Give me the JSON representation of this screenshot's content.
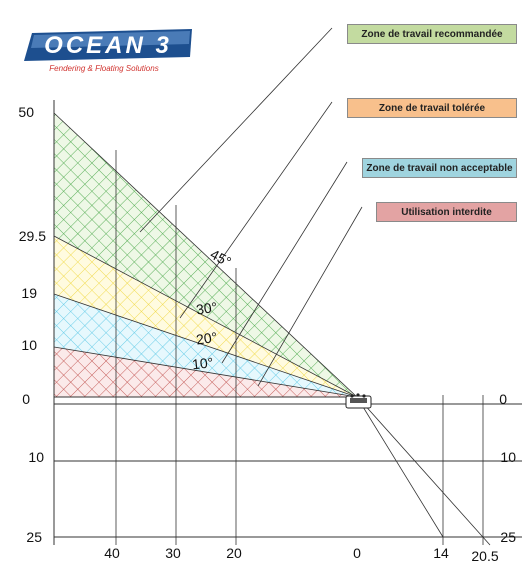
{
  "logo": {
    "name": "OCEAN 3",
    "tagline": "Fendering & Floating Solutions"
  },
  "legend": [
    {
      "label": "Zone de travail recommandée",
      "color": "#c3dba0"
    },
    {
      "label": "Zone de travail tolérée",
      "color": "#f8c08c"
    },
    {
      "label": "Zone de travail non acceptable",
      "color": "#9fd4df"
    },
    {
      "label": "Utilisation interdite",
      "color": "#e3a3a3"
    }
  ],
  "zones": {
    "recommended_color": "#5cb85c",
    "tolerated_color": "#f0d840",
    "unacceptable_color": "#5bc8e6",
    "forbidden_color": "#c0504d"
  },
  "angles": [
    "45°",
    "30°",
    "20°",
    "10°"
  ],
  "left_axis_labels": [
    "50",
    "29.5",
    "19",
    "10",
    "0",
    "10",
    "25"
  ],
  "right_axis_labels": [
    "0",
    "10",
    "25"
  ],
  "bottom_axis_labels": [
    "40",
    "30",
    "20",
    "0",
    "14",
    "20.5"
  ]
}
